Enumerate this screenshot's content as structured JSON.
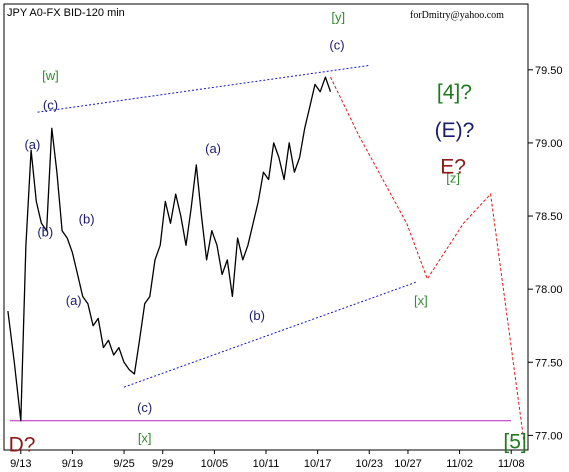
{
  "chart_data": {
    "type": "line",
    "title": "JPY A0-FX BID-120 min",
    "source_note": "forDmitry@yahoo.com",
    "ylim": [
      76.9,
      79.95
    ],
    "xlim": [
      -0.3,
      40.3
    ],
    "y_ticks": [
      "79.50",
      "79.00",
      "78.50",
      "78.00",
      "77.50",
      "77.00"
    ],
    "y_tick_values": [
      79.5,
      79.0,
      78.5,
      78.0,
      77.5,
      77.0
    ],
    "x_ticks": [
      "9/13",
      "9/19",
      "9/25",
      "9/29",
      "10/05",
      "10/11",
      "10/17",
      "10/23",
      "10/27",
      "11/02",
      "11/08"
    ],
    "x_tick_positions": [
      1,
      5,
      9,
      12,
      16,
      20,
      24,
      28,
      31,
      35,
      39
    ],
    "price_series": {
      "name": "",
      "x": [
        0,
        0.5,
        1.0,
        1.4,
        1.8,
        2.2,
        2.6,
        3.0,
        3.4,
        3.8,
        4.2,
        4.6,
        5.0,
        5.4,
        5.8,
        6.2,
        6.6,
        7.0,
        7.4,
        7.8,
        8.2,
        8.6,
        9.0,
        9.4,
        9.8,
        10.2,
        10.6,
        11.0,
        11.4,
        11.8,
        12.2,
        12.6,
        13.0,
        13.4,
        13.8,
        14.2,
        14.6,
        15.0,
        15.4,
        15.8,
        16.2,
        16.6,
        17.0,
        17.4,
        17.8,
        18.2,
        18.6,
        19.0,
        19.4,
        19.8,
        20.2,
        20.6,
        21.0,
        21.4,
        21.8,
        22.2,
        22.6,
        23.0,
        23.4,
        23.8,
        24.2,
        24.6,
        25.0
      ],
      "y": [
        77.85,
        77.5,
        77.1,
        78.3,
        78.95,
        78.6,
        78.45,
        78.4,
        79.1,
        78.8,
        78.4,
        78.35,
        78.25,
        78.1,
        77.95,
        77.9,
        77.75,
        77.8,
        77.6,
        77.65,
        77.55,
        77.6,
        77.5,
        77.45,
        77.42,
        77.65,
        77.9,
        77.95,
        78.2,
        78.3,
        78.6,
        78.45,
        78.65,
        78.5,
        78.3,
        78.55,
        78.85,
        78.5,
        78.2,
        78.4,
        78.3,
        78.1,
        78.2,
        77.95,
        78.35,
        78.2,
        78.3,
        78.45,
        78.6,
        78.8,
        78.75,
        79.0,
        78.9,
        78.75,
        79.0,
        78.8,
        78.9,
        79.1,
        79.25,
        79.4,
        79.35,
        79.45,
        79.35
      ]
    },
    "projection_path": {
      "x": [
        25.0,
        27.2,
        30.9,
        32.5,
        35.3,
        37.4,
        40.0
      ],
      "y": [
        79.45,
        79.05,
        78.45,
        78.07,
        78.45,
        78.65,
        76.95
      ]
    },
    "upper_trendline": {
      "x": [
        2.3,
        28.0
      ],
      "y": [
        79.21,
        79.53
      ]
    },
    "lower_trendline": {
      "x": [
        9.0,
        31.7
      ],
      "y": [
        77.33,
        78.05
      ]
    },
    "support_line": {
      "y": 77.1
    },
    "wave_labels": [
      {
        "text": "[y]",
        "x": 25.6,
        "y": 79.83,
        "color": "#338a33",
        "size": "small"
      },
      {
        "text": "(c)",
        "x": 25.5,
        "y": 79.64,
        "color": "#1a1a70",
        "size": "small"
      },
      {
        "text": "[w]",
        "x": 3.3,
        "y": 79.43,
        "color": "#338a33",
        "size": "small"
      },
      {
        "text": "(c)",
        "x": 3.3,
        "y": 79.23,
        "color": "#1a1a70",
        "size": "small"
      },
      {
        "text": "(a)",
        "x": 1.9,
        "y": 78.96,
        "color": "#1a1a70",
        "size": "small"
      },
      {
        "text": "(b)",
        "x": 2.9,
        "y": 78.36,
        "color": "#1a1a70",
        "size": "small"
      },
      {
        "text": "(b)",
        "x": 6.1,
        "y": 78.45,
        "color": "#1a1a70",
        "size": "small"
      },
      {
        "text": "(a)",
        "x": 5.1,
        "y": 77.89,
        "color": "#1a1a70",
        "size": "small"
      },
      {
        "text": "(a)",
        "x": 15.9,
        "y": 78.93,
        "color": "#1a1a70",
        "size": "small"
      },
      {
        "text": "(b)",
        "x": 19.3,
        "y": 77.79,
        "color": "#1a1a70",
        "size": "small"
      },
      {
        "text": "(c)",
        "x": 10.6,
        "y": 77.16,
        "color": "#1a1a70",
        "size": "small"
      },
      {
        "text": "[x]",
        "x": 10.6,
        "y": 76.95,
        "color": "#338a33",
        "size": "small"
      },
      {
        "text": "[x]",
        "x": 32.0,
        "y": 77.89,
        "color": "#338a33",
        "size": "small"
      },
      {
        "text": "[z]",
        "x": 34.5,
        "y": 78.73,
        "color": "#338a33",
        "size": "small"
      },
      {
        "text": "[4]?",
        "x": 34.6,
        "y": 79.3,
        "color": "#1f7a1f",
        "size": "large"
      },
      {
        "text": "(E)?",
        "x": 34.6,
        "y": 79.04,
        "color": "#1a1a6e",
        "size": "large"
      },
      {
        "text": "E?",
        "x": 34.5,
        "y": 78.79,
        "color": "#8b1a1a",
        "size": "large"
      },
      {
        "text": "D?",
        "x": 1.1,
        "y": 76.89,
        "color": "#8b1a1a",
        "size": "large"
      },
      {
        "text": "[5]",
        "x": 39.3,
        "y": 76.91,
        "color": "#1f7a1f",
        "size": "large"
      }
    ],
    "colors": {
      "price": "#000000",
      "trendlines": "#1515c8",
      "projection": "#e01818",
      "support": "#c020c0",
      "frame": "#000000"
    },
    "grid": false
  }
}
